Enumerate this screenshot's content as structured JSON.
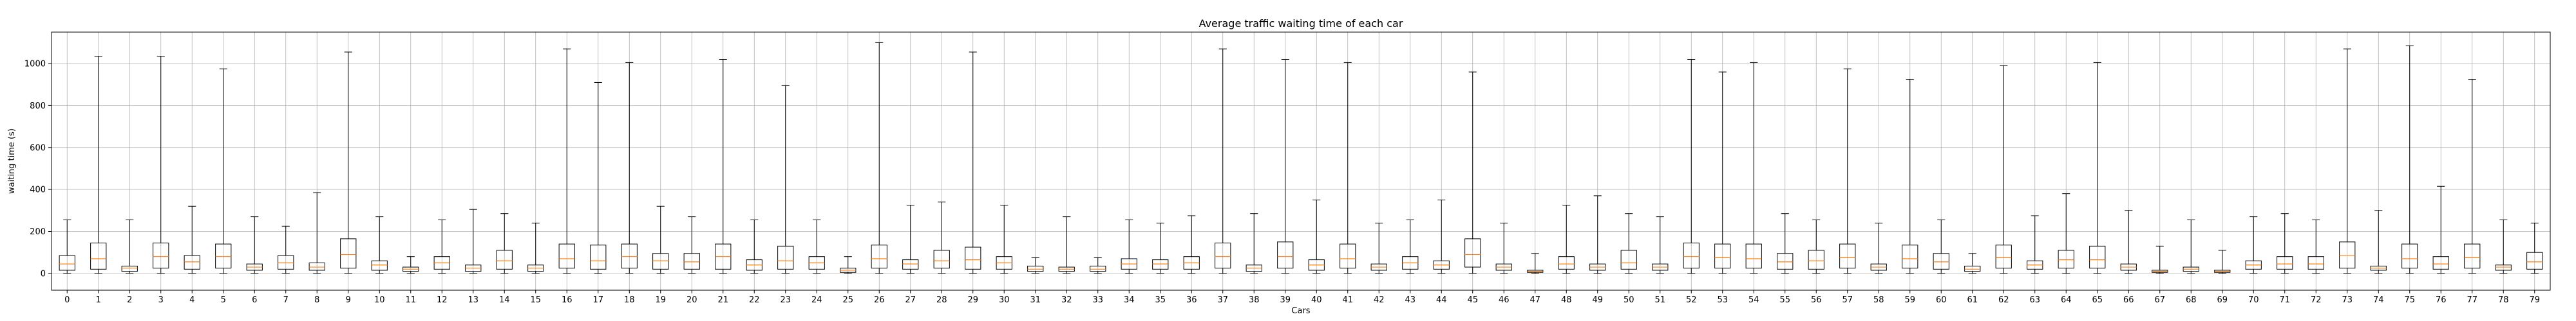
{
  "chart_data": {
    "type": "box",
    "title": "Average traffic waiting time of each car",
    "xlabel": "Cars",
    "ylabel": "waiting time (s)",
    "grid": true,
    "ylim": [
      -80,
      1150
    ],
    "yticks": [
      0,
      200,
      400,
      600,
      800,
      1000
    ],
    "colors": {
      "box": "#000000",
      "median": "#ff7f0e",
      "grid": "#b0b0b0",
      "background": "#ffffff"
    },
    "categories": [
      "0",
      "1",
      "2",
      "3",
      "4",
      "5",
      "6",
      "7",
      "8",
      "9",
      "10",
      "11",
      "12",
      "13",
      "14",
      "15",
      "16",
      "17",
      "18",
      "19",
      "20",
      "21",
      "22",
      "23",
      "24",
      "25",
      "26",
      "27",
      "28",
      "29",
      "30",
      "31",
      "32",
      "33",
      "34",
      "35",
      "36",
      "37",
      "38",
      "39",
      "40",
      "41",
      "42",
      "43",
      "44",
      "45",
      "46",
      "47",
      "48",
      "49",
      "50",
      "51",
      "52",
      "53",
      "54",
      "55",
      "56",
      "57",
      "58",
      "59",
      "60",
      "61",
      "62",
      "63",
      "64",
      "65",
      "66",
      "67",
      "68",
      "69",
      "70",
      "71",
      "72",
      "73",
      "74",
      "75",
      "76",
      "77",
      "78",
      "79"
    ],
    "boxes": [
      {
        "min": 0,
        "q1": 15,
        "median": 45,
        "q3": 85,
        "max": 255
      },
      {
        "min": 0,
        "q1": 20,
        "median": 70,
        "q3": 145,
        "max": 1035
      },
      {
        "min": 0,
        "q1": 10,
        "median": 25,
        "q3": 35,
        "max": 255
      },
      {
        "min": 0,
        "q1": 25,
        "median": 80,
        "q3": 145,
        "max": 1035
      },
      {
        "min": 0,
        "q1": 20,
        "median": 55,
        "q3": 85,
        "max": 320
      },
      {
        "min": 0,
        "q1": 25,
        "median": 80,
        "q3": 140,
        "max": 975
      },
      {
        "min": 0,
        "q1": 15,
        "median": 30,
        "q3": 45,
        "max": 270
      },
      {
        "min": 0,
        "q1": 20,
        "median": 50,
        "q3": 85,
        "max": 225
      },
      {
        "min": 0,
        "q1": 15,
        "median": 30,
        "q3": 50,
        "max": 385
      },
      {
        "min": 0,
        "q1": 25,
        "median": 90,
        "q3": 165,
        "max": 1055
      },
      {
        "min": 0,
        "q1": 15,
        "median": 40,
        "q3": 60,
        "max": 270
      },
      {
        "min": 0,
        "q1": 10,
        "median": 20,
        "q3": 30,
        "max": 80
      },
      {
        "min": 0,
        "q1": 20,
        "median": 50,
        "q3": 80,
        "max": 255
      },
      {
        "min": 0,
        "q1": 10,
        "median": 25,
        "q3": 40,
        "max": 305
      },
      {
        "min": 0,
        "q1": 20,
        "median": 60,
        "q3": 110,
        "max": 285
      },
      {
        "min": 0,
        "q1": 10,
        "median": 25,
        "q3": 40,
        "max": 240
      },
      {
        "min": 0,
        "q1": 25,
        "median": 70,
        "q3": 140,
        "max": 1070
      },
      {
        "min": 0,
        "q1": 20,
        "median": 60,
        "q3": 135,
        "max": 910
      },
      {
        "min": 0,
        "q1": 25,
        "median": 80,
        "q3": 140,
        "max": 1005
      },
      {
        "min": 0,
        "q1": 20,
        "median": 60,
        "q3": 95,
        "max": 320
      },
      {
        "min": 0,
        "q1": 20,
        "median": 55,
        "q3": 95,
        "max": 270
      },
      {
        "min": 0,
        "q1": 20,
        "median": 80,
        "q3": 140,
        "max": 1020
      },
      {
        "min": 0,
        "q1": 15,
        "median": 40,
        "q3": 65,
        "max": 255
      },
      {
        "min": 0,
        "q1": 20,
        "median": 60,
        "q3": 130,
        "max": 895
      },
      {
        "min": 0,
        "q1": 20,
        "median": 50,
        "q3": 80,
        "max": 255
      },
      {
        "min": 0,
        "q1": 5,
        "median": 15,
        "q3": 25,
        "max": 80
      },
      {
        "min": 0,
        "q1": 25,
        "median": 70,
        "q3": 135,
        "max": 1100
      },
      {
        "min": 0,
        "q1": 20,
        "median": 45,
        "q3": 65,
        "max": 325
      },
      {
        "min": 0,
        "q1": 25,
        "median": 60,
        "q3": 110,
        "max": 340
      },
      {
        "min": 0,
        "q1": 20,
        "median": 65,
        "q3": 125,
        "max": 1055
      },
      {
        "min": 0,
        "q1": 20,
        "median": 50,
        "q3": 80,
        "max": 325
      },
      {
        "min": 0,
        "q1": 10,
        "median": 20,
        "q3": 35,
        "max": 75
      },
      {
        "min": 0,
        "q1": 10,
        "median": 20,
        "q3": 30,
        "max": 270
      },
      {
        "min": 0,
        "q1": 10,
        "median": 20,
        "q3": 35,
        "max": 75
      },
      {
        "min": 0,
        "q1": 20,
        "median": 45,
        "q3": 70,
        "max": 255
      },
      {
        "min": 0,
        "q1": 20,
        "median": 45,
        "q3": 65,
        "max": 240
      },
      {
        "min": 0,
        "q1": 20,
        "median": 50,
        "q3": 80,
        "max": 275
      },
      {
        "min": 0,
        "q1": 25,
        "median": 80,
        "q3": 145,
        "max": 1070
      },
      {
        "min": 0,
        "q1": 10,
        "median": 25,
        "q3": 40,
        "max": 285
      },
      {
        "min": 0,
        "q1": 25,
        "median": 80,
        "q3": 150,
        "max": 1020
      },
      {
        "min": 0,
        "q1": 15,
        "median": 40,
        "q3": 65,
        "max": 350
      },
      {
        "min": 0,
        "q1": 25,
        "median": 70,
        "q3": 140,
        "max": 1005
      },
      {
        "min": 0,
        "q1": 15,
        "median": 30,
        "q3": 45,
        "max": 240
      },
      {
        "min": 0,
        "q1": 20,
        "median": 50,
        "q3": 80,
        "max": 255
      },
      {
        "min": 0,
        "q1": 20,
        "median": 40,
        "q3": 60,
        "max": 350
      },
      {
        "min": 0,
        "q1": 30,
        "median": 90,
        "q3": 165,
        "max": 960
      },
      {
        "min": 0,
        "q1": 15,
        "median": 30,
        "q3": 45,
        "max": 240
      },
      {
        "min": 0,
        "q1": 5,
        "median": 10,
        "q3": 15,
        "max": 95
      },
      {
        "min": 0,
        "q1": 20,
        "median": 45,
        "q3": 80,
        "max": 325
      },
      {
        "min": 0,
        "q1": 15,
        "median": 30,
        "q3": 45,
        "max": 370
      },
      {
        "min": 0,
        "q1": 20,
        "median": 50,
        "q3": 110,
        "max": 285
      },
      {
        "min": 0,
        "q1": 15,
        "median": 30,
        "q3": 45,
        "max": 270
      },
      {
        "min": 0,
        "q1": 25,
        "median": 80,
        "q3": 145,
        "max": 1020
      },
      {
        "min": 0,
        "q1": 25,
        "median": 75,
        "q3": 140,
        "max": 960
      },
      {
        "min": 0,
        "q1": 25,
        "median": 70,
        "q3": 140,
        "max": 1005
      },
      {
        "min": 0,
        "q1": 20,
        "median": 55,
        "q3": 95,
        "max": 285
      },
      {
        "min": 0,
        "q1": 20,
        "median": 60,
        "q3": 110,
        "max": 255
      },
      {
        "min": 0,
        "q1": 25,
        "median": 75,
        "q3": 140,
        "max": 975
      },
      {
        "min": 0,
        "q1": 15,
        "median": 30,
        "q3": 45,
        "max": 240
      },
      {
        "min": 0,
        "q1": 25,
        "median": 70,
        "q3": 135,
        "max": 925
      },
      {
        "min": 0,
        "q1": 20,
        "median": 55,
        "q3": 95,
        "max": 255
      },
      {
        "min": 0,
        "q1": 10,
        "median": 20,
        "q3": 35,
        "max": 95
      },
      {
        "min": 0,
        "q1": 25,
        "median": 75,
        "q3": 135,
        "max": 990
      },
      {
        "min": 0,
        "q1": 20,
        "median": 40,
        "q3": 60,
        "max": 275
      },
      {
        "min": 0,
        "q1": 25,
        "median": 65,
        "q3": 110,
        "max": 380
      },
      {
        "min": 0,
        "q1": 25,
        "median": 65,
        "q3": 130,
        "max": 1005
      },
      {
        "min": 0,
        "q1": 15,
        "median": 30,
        "q3": 45,
        "max": 300
      },
      {
        "min": 0,
        "q1": 5,
        "median": 10,
        "q3": 15,
        "max": 130
      },
      {
        "min": 0,
        "q1": 10,
        "median": 20,
        "q3": 30,
        "max": 255
      },
      {
        "min": 0,
        "q1": 5,
        "median": 10,
        "q3": 15,
        "max": 110
      },
      {
        "min": 0,
        "q1": 20,
        "median": 40,
        "q3": 60,
        "max": 270
      },
      {
        "min": 0,
        "q1": 20,
        "median": 45,
        "q3": 80,
        "max": 285
      },
      {
        "min": 0,
        "q1": 20,
        "median": 45,
        "q3": 80,
        "max": 255
      },
      {
        "min": 0,
        "q1": 25,
        "median": 85,
        "q3": 150,
        "max": 1070
      },
      {
        "min": 0,
        "q1": 15,
        "median": 25,
        "q3": 35,
        "max": 300
      },
      {
        "min": 0,
        "q1": 25,
        "median": 70,
        "q3": 140,
        "max": 1085
      },
      {
        "min": 0,
        "q1": 20,
        "median": 45,
        "q3": 80,
        "max": 415
      },
      {
        "min": 0,
        "q1": 25,
        "median": 75,
        "q3": 140,
        "max": 925
      },
      {
        "min": 0,
        "q1": 15,
        "median": 30,
        "q3": 40,
        "max": 255
      },
      {
        "min": 0,
        "q1": 20,
        "median": 55,
        "q3": 100,
        "max": 240
      }
    ]
  }
}
